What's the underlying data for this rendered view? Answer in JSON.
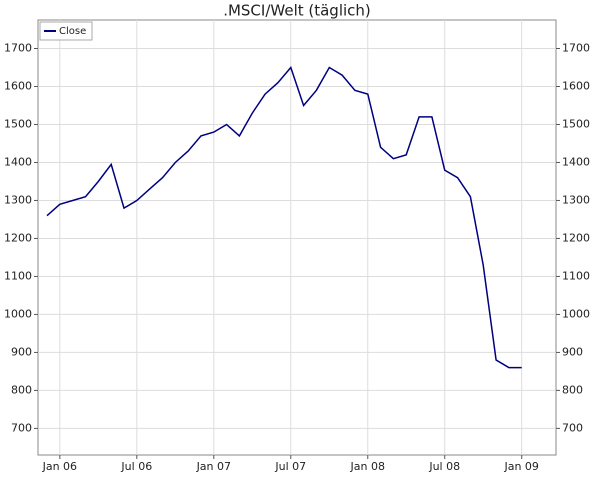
{
  "chart_data": {
    "type": "line",
    "title": ".MSCI/Welt (täglich)",
    "x": [
      "2005-12",
      "2006-01",
      "2006-02",
      "2006-03",
      "2006-04",
      "2006-05",
      "2006-06",
      "2006-07",
      "2006-08",
      "2006-09",
      "2006-10",
      "2006-11",
      "2006-12",
      "2007-01",
      "2007-02",
      "2007-03",
      "2007-04",
      "2007-05",
      "2007-06",
      "2007-07",
      "2007-08",
      "2007-09",
      "2007-10",
      "2007-11",
      "2007-12",
      "2008-01",
      "2008-02",
      "2008-03",
      "2008-04",
      "2008-05",
      "2008-06",
      "2008-07",
      "2008-08",
      "2008-09",
      "2008-10",
      "2008-11",
      "2008-12",
      "2009-01"
    ],
    "series": [
      {
        "name": "Close",
        "color": "#000080",
        "values": [
          1260,
          1290,
          1300,
          1310,
          1350,
          1395,
          1280,
          1300,
          1330,
          1360,
          1400,
          1430,
          1470,
          1480,
          1500,
          1470,
          1530,
          1580,
          1610,
          1650,
          1550,
          1590,
          1650,
          1630,
          1590,
          1580,
          1440,
          1410,
          1420,
          1520,
          1520,
          1380,
          1360,
          1310,
          1130,
          880,
          860,
          860
        ]
      }
    ],
    "ylim": [
      630,
      1775
    ],
    "yticks": [
      700,
      800,
      900,
      1000,
      1100,
      1200,
      1300,
      1400,
      1500,
      1600,
      1700
    ],
    "xticks": [
      {
        "value": "2006-01",
        "label": "Jan 06"
      },
      {
        "value": "2006-07",
        "label": "Jul 06"
      },
      {
        "value": "2007-01",
        "label": "Jan 07"
      },
      {
        "value": "2007-07",
        "label": "Jul 07"
      },
      {
        "value": "2008-01",
        "label": "Jan 08"
      },
      {
        "value": "2008-07",
        "label": "Jul 08"
      },
      {
        "value": "2009-01",
        "label": "Jan 09"
      }
    ],
    "grid": true,
    "legend": "upper left"
  }
}
